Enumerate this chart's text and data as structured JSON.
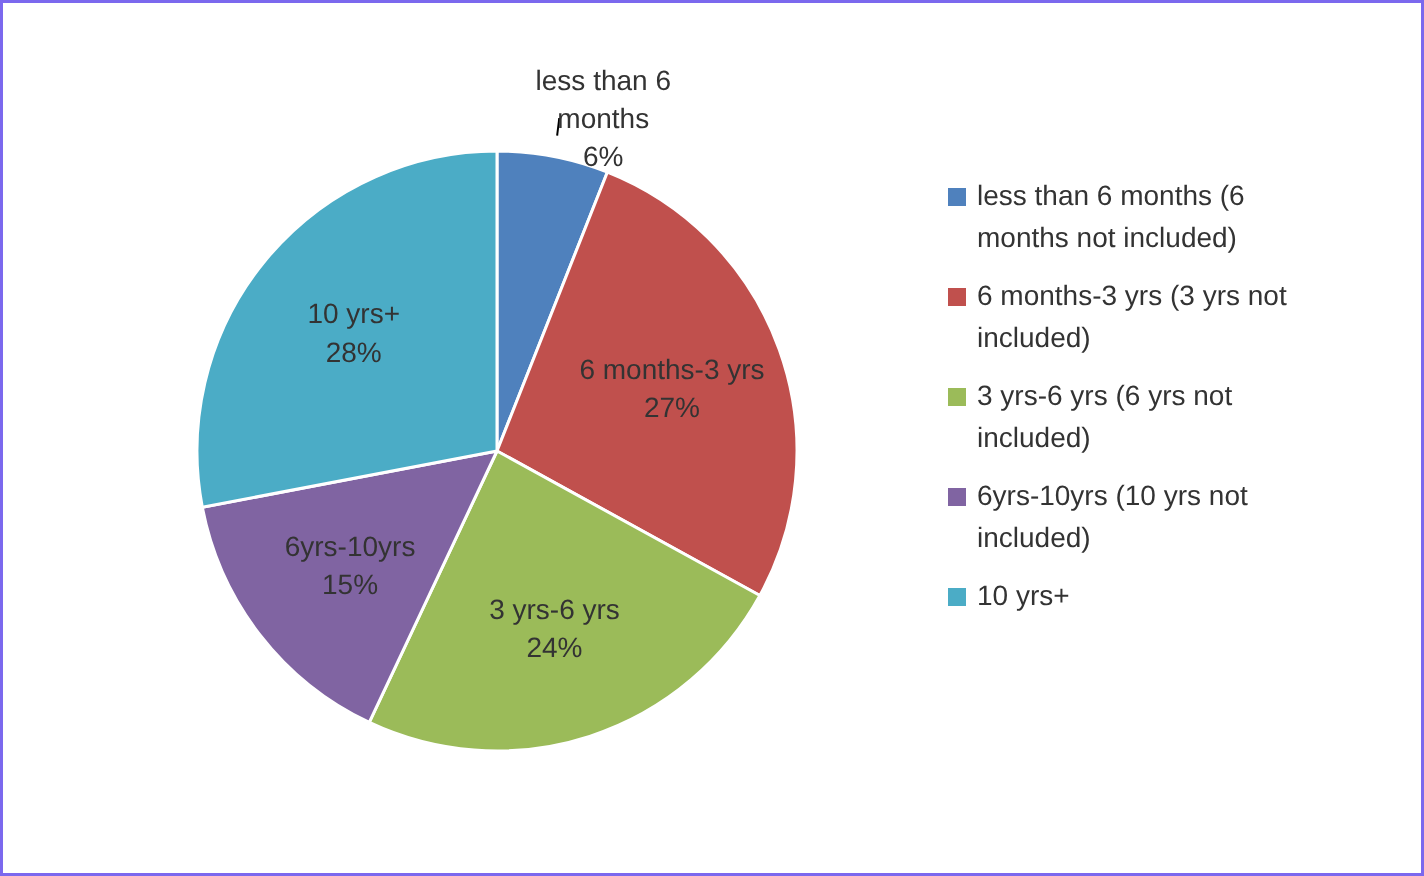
{
  "chart_data": {
    "type": "pie",
    "categories": [
      "less than 6 months (6 months not included)",
      "6 months-3 yrs (3 yrs not included)",
      "3 yrs-6 yrs (6 yrs not included)",
      "6yrs-10yrs (10 yrs not included)",
      "10 yrs+"
    ],
    "values": [
      6,
      27,
      24,
      15,
      28
    ],
    "colors": [
      "#4f81bd",
      "#c0504d",
      "#9bbb59",
      "#8064a2",
      "#4bacc6"
    ],
    "value_labels": [
      "less than 6\nmonths\n6%",
      "6 months-3 yrs\n27%",
      "3 yrs-6 yrs\n24%",
      "6yrs-10yrs\n15%",
      "10 yrs+\n28%"
    ],
    "legend": "right"
  }
}
